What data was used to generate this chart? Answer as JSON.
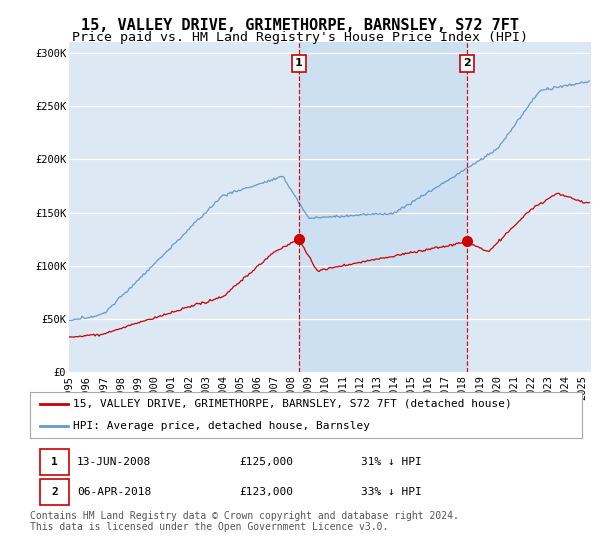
{
  "title": "15, VALLEY DRIVE, GRIMETHORPE, BARNSLEY, S72 7FT",
  "subtitle": "Price paid vs. HM Land Registry's House Price Index (HPI)",
  "ylabel_ticks": [
    "£0",
    "£50K",
    "£100K",
    "£150K",
    "£200K",
    "£250K",
    "£300K"
  ],
  "ytick_values": [
    0,
    50000,
    100000,
    150000,
    200000,
    250000,
    300000
  ],
  "ylim": [
    0,
    310000
  ],
  "xlim_start": 1995.0,
  "xlim_end": 2025.5,
  "xticks": [
    1995,
    1996,
    1997,
    1998,
    1999,
    2000,
    2001,
    2002,
    2003,
    2004,
    2005,
    2006,
    2007,
    2008,
    2009,
    2010,
    2011,
    2012,
    2013,
    2014,
    2015,
    2016,
    2017,
    2018,
    2019,
    2020,
    2021,
    2022,
    2023,
    2024,
    2025
  ],
  "plot_bg_color": "#dce9f5",
  "shade_color": "#c8ddf0",
  "fig_bg_color": "#ffffff",
  "hpi_color": "#6699cc",
  "price_color": "#cc0000",
  "marker1_x": 2008.44,
  "marker1_y": 125000,
  "marker2_x": 2018.26,
  "marker2_y": 123000,
  "vline_color": "#cc0000",
  "legend_label_price": "15, VALLEY DRIVE, GRIMETHORPE, BARNSLEY, S72 7FT (detached house)",
  "legend_label_hpi": "HPI: Average price, detached house, Barnsley",
  "footer": "Contains HM Land Registry data © Crown copyright and database right 2024.\nThis data is licensed under the Open Government Licence v3.0.",
  "title_fontsize": 11,
  "subtitle_fontsize": 9.5,
  "tick_fontsize": 7.5,
  "legend_fontsize": 8,
  "table_fontsize": 8,
  "footer_fontsize": 7
}
